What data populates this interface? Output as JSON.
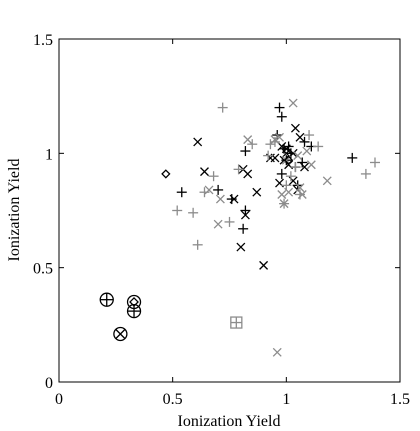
{
  "chart_data": {
    "type": "scatter",
    "title": "",
    "xlabel": "Ionization Yield",
    "ylabel": "Ionization Yield",
    "xlim": [
      0,
      1.5
    ],
    "ylim": [
      0,
      1.5
    ],
    "xticks": [
      "0",
      "0.5",
      "1",
      "1.5"
    ],
    "yticks": [
      "0",
      "0.5",
      "1",
      "1.5"
    ],
    "grid": false,
    "legend": "none",
    "colors": {
      "black": "#000000",
      "gray": "#8c8c8c"
    },
    "series": [
      {
        "marker": "plus",
        "color": "black",
        "points": [
          [
            0.54,
            0.83
          ],
          [
            0.7,
            0.84
          ],
          [
            0.76,
            0.8
          ],
          [
            0.81,
            0.67
          ],
          [
            0.82,
            0.75
          ],
          [
            0.82,
            1.01
          ],
          [
            0.96,
            1.08
          ],
          [
            0.97,
            1.2
          ],
          [
            0.98,
            1.16
          ],
          [
            0.99,
            1.02
          ],
          [
            0.98,
            0.91
          ],
          [
            1.0,
            0.97
          ],
          [
            1.01,
            1.03
          ],
          [
            1.02,
            1.0
          ],
          [
            1.04,
            0.94
          ],
          [
            1.05,
            0.86
          ],
          [
            1.07,
            0.96
          ],
          [
            1.08,
            1.05
          ],
          [
            1.11,
            1.03
          ],
          [
            1.29,
            0.98
          ]
        ]
      },
      {
        "marker": "x",
        "color": "black",
        "points": [
          [
            0.61,
            1.05
          ],
          [
            0.64,
            0.92
          ],
          [
            0.77,
            0.8
          ],
          [
            0.8,
            0.59
          ],
          [
            0.82,
            0.73
          ],
          [
            0.81,
            0.93
          ],
          [
            0.83,
            0.91
          ],
          [
            0.87,
            0.83
          ],
          [
            0.9,
            0.51
          ],
          [
            0.93,
            0.98
          ],
          [
            0.95,
            0.98
          ],
          [
            0.97,
            0.87
          ],
          [
            0.98,
            1.03
          ],
          [
            0.99,
            0.97
          ],
          [
            1.0,
            1.0
          ],
          [
            1.01,
            0.95
          ],
          [
            1.03,
            0.88
          ],
          [
            1.04,
            1.11
          ],
          [
            1.05,
            0.84
          ],
          [
            1.06,
            1.07
          ],
          [
            1.08,
            0.94
          ],
          [
            1.0,
            1.02
          ],
          [
            1.03,
            1.0
          ]
        ]
      },
      {
        "marker": "plus",
        "color": "gray",
        "points": [
          [
            0.52,
            0.75
          ],
          [
            0.59,
            0.74
          ],
          [
            0.61,
            0.6
          ],
          [
            0.64,
            0.83
          ],
          [
            0.68,
            0.9
          ],
          [
            0.72,
            1.2
          ],
          [
            0.75,
            0.7
          ],
          [
            0.79,
            0.93
          ],
          [
            0.85,
            1.04
          ],
          [
            0.92,
            0.99
          ],
          [
            0.93,
            1.04
          ],
          [
            0.95,
            1.05
          ],
          [
            0.99,
            0.78
          ],
          [
            1.0,
            0.86
          ],
          [
            1.02,
            0.9
          ],
          [
            1.04,
            0.94
          ],
          [
            1.06,
            0.82
          ],
          [
            1.1,
            1.08
          ],
          [
            1.14,
            1.03
          ],
          [
            1.35,
            0.91
          ],
          [
            1.39,
            0.96
          ]
        ]
      },
      {
        "marker": "x",
        "color": "gray",
        "points": [
          [
            0.66,
            0.84
          ],
          [
            0.71,
            0.8
          ],
          [
            0.7,
            0.69
          ],
          [
            0.83,
            1.06
          ],
          [
            0.95,
            1.06
          ],
          [
            0.97,
            1.07
          ],
          [
            0.98,
            0.82
          ],
          [
            0.99,
            0.78
          ],
          [
            1.0,
            0.97
          ],
          [
            1.01,
            0.83
          ],
          [
            1.03,
            1.22
          ],
          [
            1.05,
            0.99
          ],
          [
            1.06,
            0.85
          ],
          [
            1.07,
            0.82
          ],
          [
            1.09,
            1.01
          ],
          [
            1.11,
            0.95
          ],
          [
            1.18,
            0.88
          ],
          [
            0.96,
            0.13
          ]
        ]
      },
      {
        "marker": "diamond",
        "color": "black",
        "points": [
          [
            0.47,
            0.91
          ],
          [
            1.01,
            0.97
          ]
        ]
      },
      {
        "marker": "circle-plus",
        "color": "black",
        "points": [
          [
            0.21,
            0.36
          ],
          [
            0.33,
            0.31
          ]
        ]
      },
      {
        "marker": "circle-x",
        "color": "black",
        "points": [
          [
            0.27,
            0.21
          ]
        ]
      },
      {
        "marker": "circle-diamond",
        "color": "black",
        "points": [
          [
            0.33,
            0.35
          ]
        ]
      },
      {
        "marker": "square-plus",
        "color": "gray",
        "points": [
          [
            0.78,
            0.26
          ]
        ]
      }
    ]
  }
}
